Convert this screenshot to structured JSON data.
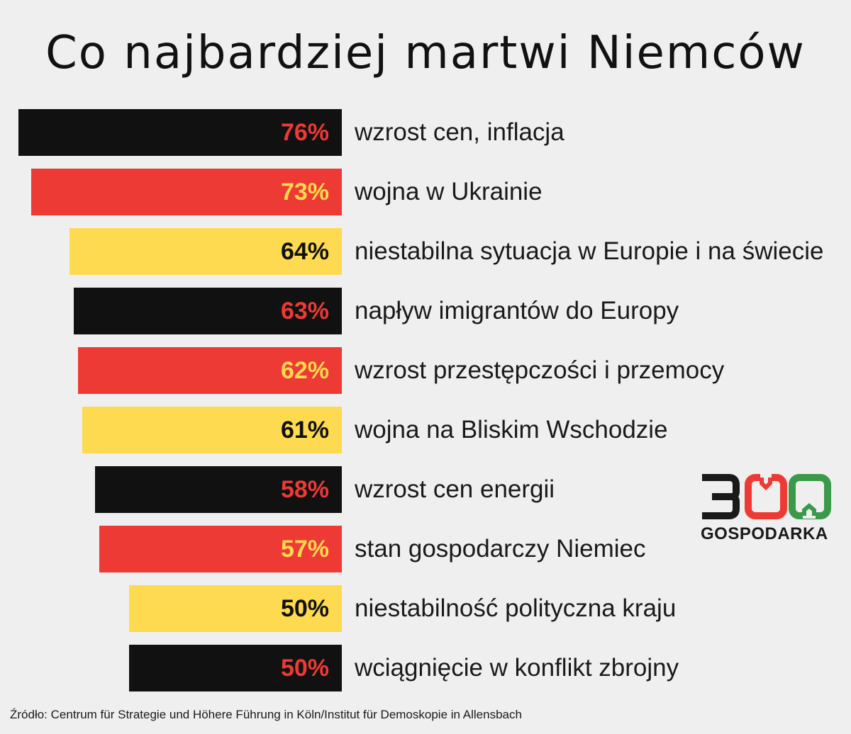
{
  "chart_data": {
    "type": "bar",
    "orientation": "horizontal",
    "title": "Co najbardziej martwi Niemców",
    "categories": [
      "wzrost cen, inflacja",
      "wojna w Ukrainie",
      "niestabilna sytuacja w Europie i na świecie",
      "napływ imigrantów do Europy",
      "wzrost przestępczości i przemocy",
      "wojna na Bliskim Wschodzie",
      "wzrost cen energii",
      "stan gospodarczy Niemiec",
      "niestabilność polityczna kraju",
      "wciągnięcie w konflikt zbrojny"
    ],
    "values": [
      76,
      73,
      64,
      63,
      62,
      61,
      58,
      57,
      50,
      50
    ],
    "value_labels": [
      "76%",
      "73%",
      "64%",
      "63%",
      "62%",
      "61%",
      "58%",
      "57%",
      "50%",
      "50%"
    ],
    "bar_colors": [
      "#111111",
      "#ee3a34",
      "#fdda4f",
      "#111111",
      "#ee3a34",
      "#fdda4f",
      "#111111",
      "#ee3a34",
      "#fdda4f",
      "#111111"
    ],
    "value_label_colors": [
      "#ee3a34",
      "#fdda4f",
      "#111111",
      "#ee3a34",
      "#fdda4f",
      "#111111",
      "#ee3a34",
      "#fdda4f",
      "#111111",
      "#ee3a34"
    ],
    "grid": false,
    "legend": "none"
  },
  "logo": {
    "digits": "300",
    "word": "GOSPODARKA",
    "colors": [
      "#1a1a1a",
      "#ee3a34",
      "#3a9a4a"
    ]
  },
  "source": "Źródło: Centrum für Strategie und Höhere Führung in Köln/Institut für Demoskopie in Allensbach",
  "background_color": "#efefef"
}
